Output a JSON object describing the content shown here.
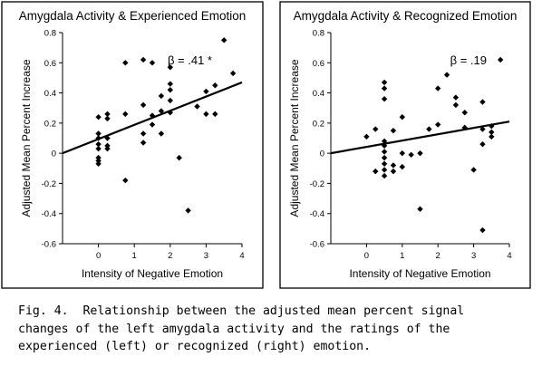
{
  "chart_data": [
    {
      "type": "scatter",
      "title": "Amygdala Activity & Experienced Emotion",
      "xlabel": "Intensity of Negative Emotion",
      "ylabel": "Adjusted Mean Percent Increase",
      "xlim": [
        -1,
        4
      ],
      "ylim": [
        -0.6,
        0.8
      ],
      "x_ticks": [
        "0",
        "1",
        "2",
        "3",
        "4"
      ],
      "y_ticks": [
        "-0.6",
        "-0.4",
        "-0.2",
        "0",
        "0.2",
        "0.4",
        "0.6",
        "0.8"
      ],
      "annotation": "β = .41 *",
      "fit_line": {
        "x": [
          -1,
          4
        ],
        "y": [
          0.0,
          0.47
        ]
      },
      "points": [
        {
          "x": 0,
          "y": 0.24
        },
        {
          "x": 0,
          "y": 0.13
        },
        {
          "x": 0,
          "y": 0.1
        },
        {
          "x": 0,
          "y": 0.06
        },
        {
          "x": 0,
          "y": 0.03
        },
        {
          "x": 0,
          "y": -0.03
        },
        {
          "x": 0,
          "y": -0.05
        },
        {
          "x": 0,
          "y": -0.07
        },
        {
          "x": 0.25,
          "y": 0.26
        },
        {
          "x": 0.25,
          "y": 0.23
        },
        {
          "x": 0.25,
          "y": 0.1
        },
        {
          "x": 0.25,
          "y": 0.05
        },
        {
          "x": 0.25,
          "y": 0.03
        },
        {
          "x": 0.75,
          "y": 0.6
        },
        {
          "x": 0.75,
          "y": 0.26
        },
        {
          "x": 0.75,
          "y": -0.18
        },
        {
          "x": 1.25,
          "y": 0.62
        },
        {
          "x": 1.25,
          "y": 0.32
        },
        {
          "x": 1.25,
          "y": 0.13
        },
        {
          "x": 1.25,
          "y": 0.07
        },
        {
          "x": 1.5,
          "y": 0.6
        },
        {
          "x": 1.5,
          "y": 0.25
        },
        {
          "x": 1.5,
          "y": 0.19
        },
        {
          "x": 1.75,
          "y": 0.38
        },
        {
          "x": 1.75,
          "y": 0.28
        },
        {
          "x": 1.75,
          "y": 0.13
        },
        {
          "x": 2,
          "y": 0.57
        },
        {
          "x": 2,
          "y": 0.46
        },
        {
          "x": 2,
          "y": 0.42
        },
        {
          "x": 2,
          "y": 0.35
        },
        {
          "x": 2,
          "y": 0.27
        },
        {
          "x": 2.25,
          "y": -0.03
        },
        {
          "x": 2.5,
          "y": -0.38
        },
        {
          "x": 2.75,
          "y": 0.31
        },
        {
          "x": 3,
          "y": 0.41
        },
        {
          "x": 3,
          "y": 0.26
        },
        {
          "x": 3.25,
          "y": 0.45
        },
        {
          "x": 3.25,
          "y": 0.26
        },
        {
          "x": 3.5,
          "y": 0.75
        },
        {
          "x": 3.75,
          "y": 0.53
        }
      ]
    },
    {
      "type": "scatter",
      "title": "Amygdala Activity & Recognized Emotion",
      "xlabel": "Intensity of Negative Emotion",
      "ylabel": "Adjusted Mean Percent Increase",
      "xlim": [
        -1,
        4
      ],
      "ylim": [
        -0.6,
        0.8
      ],
      "x_ticks": [
        "0",
        "1",
        "2",
        "3",
        "4"
      ],
      "y_ticks": [
        "-0.6",
        "-0.4",
        "-0.2",
        "0",
        "0.2",
        "0.4",
        "0.6",
        "0.8"
      ],
      "annotation": "β = .19",
      "fit_line": {
        "x": [
          -1,
          4
        ],
        "y": [
          0.0,
          0.21
        ]
      },
      "points": [
        {
          "x": 0,
          "y": 0.11
        },
        {
          "x": 0.25,
          "y": 0.16
        },
        {
          "x": 0.25,
          "y": -0.12
        },
        {
          "x": 0.5,
          "y": 0.47
        },
        {
          "x": 0.5,
          "y": 0.43
        },
        {
          "x": 0.5,
          "y": 0.36
        },
        {
          "x": 0.5,
          "y": 0.08
        },
        {
          "x": 0.5,
          "y": 0.05
        },
        {
          "x": 0.5,
          "y": 0.01
        },
        {
          "x": 0.5,
          "y": -0.03
        },
        {
          "x": 0.5,
          "y": -0.07
        },
        {
          "x": 0.5,
          "y": -0.11
        },
        {
          "x": 0.5,
          "y": -0.15
        },
        {
          "x": 0.75,
          "y": 0.15
        },
        {
          "x": 0.75,
          "y": -0.08
        },
        {
          "x": 0.75,
          "y": -0.12
        },
        {
          "x": 1,
          "y": 0.24
        },
        {
          "x": 1,
          "y": 0.0
        },
        {
          "x": 1,
          "y": -0.09
        },
        {
          "x": 1.25,
          "y": -0.01
        },
        {
          "x": 1.5,
          "y": 0.0
        },
        {
          "x": 1.5,
          "y": -0.37
        },
        {
          "x": 1.75,
          "y": 0.16
        },
        {
          "x": 2,
          "y": 0.43
        },
        {
          "x": 2,
          "y": 0.19
        },
        {
          "x": 2.25,
          "y": 0.52
        },
        {
          "x": 2.5,
          "y": 0.37
        },
        {
          "x": 2.5,
          "y": 0.32
        },
        {
          "x": 2.75,
          "y": 0.27
        },
        {
          "x": 2.75,
          "y": 0.17
        },
        {
          "x": 3,
          "y": -0.11
        },
        {
          "x": 3.25,
          "y": 0.34
        },
        {
          "x": 3.25,
          "y": 0.16
        },
        {
          "x": 3.25,
          "y": 0.06
        },
        {
          "x": 3.25,
          "y": -0.51
        },
        {
          "x": 3.5,
          "y": 0.18
        },
        {
          "x": 3.5,
          "y": 0.14
        },
        {
          "x": 3.5,
          "y": 0.11
        },
        {
          "x": 3.75,
          "y": 0.62
        }
      ]
    }
  ],
  "caption": "Fig. 4.  Relationship between the adjusted mean percent signal\nchanges of the left amygdala activity and the ratings of the\nexperienced (left) or recognized (right) emotion."
}
